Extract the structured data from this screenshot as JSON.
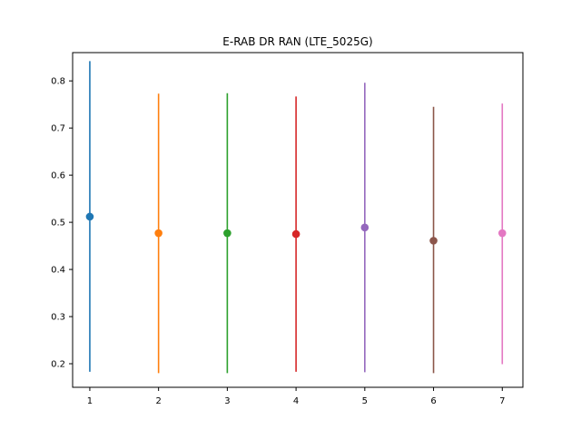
{
  "chart_data": {
    "type": "errorbar",
    "title": "E-RAB DR RAN (LTE_5025G)",
    "xlabel": "",
    "ylabel": "",
    "xlim": [
      0.75,
      7.3
    ],
    "ylim": [
      0.15,
      0.86
    ],
    "xticks": [
      1,
      2,
      3,
      4,
      5,
      6,
      7
    ],
    "yticks": [
      0.2,
      0.3,
      0.4,
      0.5,
      0.6,
      0.7,
      0.8
    ],
    "grid": false,
    "points": [
      {
        "x": 1,
        "y": 0.512,
        "low": 0.183,
        "high": 0.842,
        "color": "#1f77b4"
      },
      {
        "x": 2,
        "y": 0.477,
        "low": 0.18,
        "high": 0.773,
        "color": "#ff7f0e"
      },
      {
        "x": 3,
        "y": 0.477,
        "low": 0.18,
        "high": 0.774,
        "color": "#2ca02c"
      },
      {
        "x": 4,
        "y": 0.475,
        "low": 0.183,
        "high": 0.767,
        "color": "#d62728"
      },
      {
        "x": 5,
        "y": 0.489,
        "low": 0.182,
        "high": 0.796,
        "color": "#9467bd"
      },
      {
        "x": 6,
        "y": 0.461,
        "low": 0.18,
        "high": 0.745,
        "color": "#8c564b"
      },
      {
        "x": 7,
        "y": 0.477,
        "low": 0.199,
        "high": 0.752,
        "color": "#e377c2"
      }
    ]
  }
}
